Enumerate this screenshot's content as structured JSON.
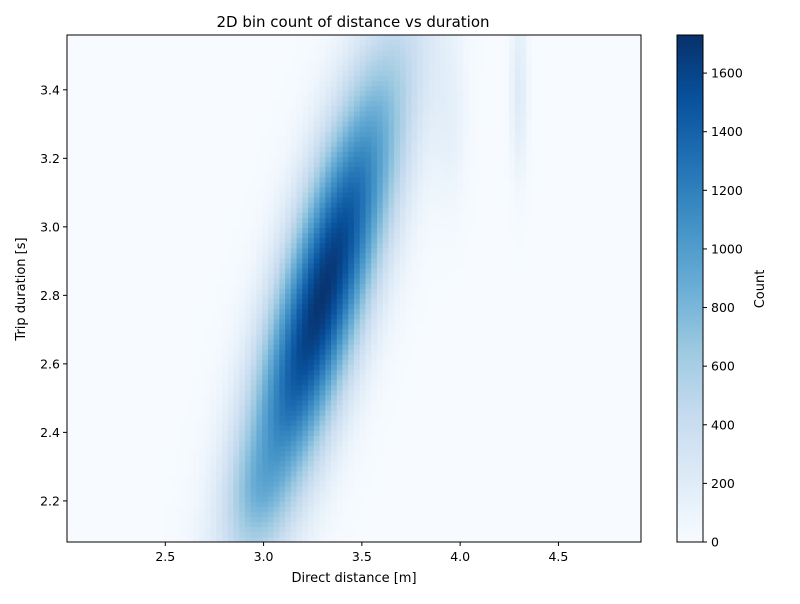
{
  "chart_data": {
    "type": "heatmap",
    "title": "2D bin count of distance vs duration",
    "xlabel": "Direct distance [m]",
    "ylabel": "Trip duration [s]",
    "xlim": [
      2.0,
      4.92
    ],
    "ylim": [
      2.08,
      3.56
    ],
    "xticks": [
      2.5,
      3.0,
      3.5,
      4.0,
      4.5
    ],
    "xtick_labels": [
      "2.5",
      "3.0",
      "3.5",
      "4.0",
      "4.5"
    ],
    "yticks": [
      2.2,
      2.4,
      2.6,
      2.8,
      3.0,
      3.2,
      3.4
    ],
    "ytick_labels": [
      "2.2",
      "2.4",
      "2.6",
      "2.8",
      "3.0",
      "3.2",
      "3.4"
    ],
    "bins": {
      "x": 100,
      "y": 100
    },
    "colormap": "Blues",
    "grid": false,
    "colorbar": {
      "label": "Count",
      "range": [
        0,
        1730
      ],
      "ticks": [
        0,
        200,
        400,
        600,
        800,
        1000,
        1200,
        1400,
        1600
      ],
      "tick_labels": [
        "0",
        "200",
        "400",
        "600",
        "800",
        "1000",
        "1200",
        "1400",
        "1600"
      ]
    },
    "density_components": [
      {
        "center": [
          3.3,
          2.8
        ],
        "along_sd": 0.52,
        "across_sd": 0.145,
        "slope_deg": 62,
        "peak": 1700
      },
      {
        "center": [
          2.95,
          2.22
        ],
        "along_sd": 0.1,
        "across_sd": 0.1,
        "slope_deg": 70,
        "peak": 150
      },
      {
        "center": [
          3.95,
          3.3
        ],
        "along_sd": 0.18,
        "across_sd": 0.06,
        "slope_deg": 90,
        "peak": 130
      },
      {
        "center": [
          4.3,
          3.4
        ],
        "along_sd": 0.18,
        "across_sd": 0.03,
        "slope_deg": 90,
        "peak": 220
      }
    ],
    "peak_count": 1700
  }
}
